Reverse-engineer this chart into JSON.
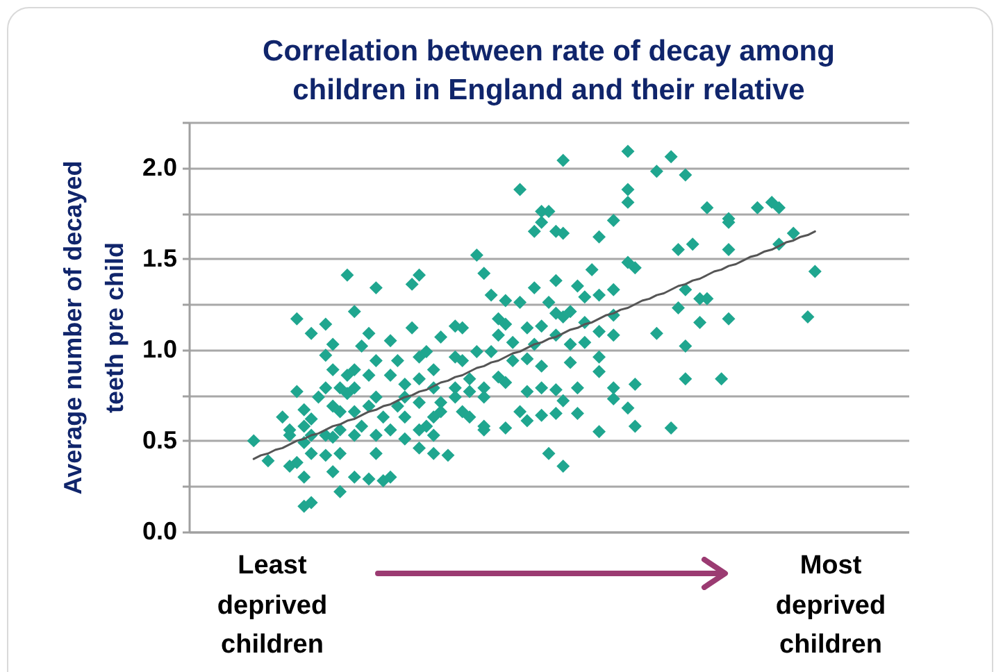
{
  "chart_data": {
    "type": "scatter",
    "title": "Correlation between rate of decay among children in England and their relative",
    "ylabel": "Average number of decayed teeth pre child",
    "annotations": [
      "Least deprived children",
      "Most deprived children"
    ],
    "categories": [
      null,
      null,
      null,
      null,
      null,
      null,
      null,
      null,
      null,
      null,
      null,
      null,
      null,
      null,
      null,
      null,
      null,
      null,
      null,
      null,
      null,
      null,
      null,
      null,
      null,
      null,
      null,
      null,
      null,
      null,
      null,
      null,
      null,
      null,
      null,
      null,
      null,
      null,
      null,
      null,
      null,
      null,
      null,
      null,
      null,
      null,
      null,
      null,
      null,
      null,
      null,
      null,
      null,
      null,
      null,
      null,
      null,
      null,
      null,
      null,
      null,
      null,
      null,
      null,
      null,
      null,
      null,
      null,
      null,
      null,
      null,
      null,
      null,
      null,
      null,
      null,
      null,
      null,
      null,
      null,
      null,
      null,
      null,
      null,
      null,
      null,
      null,
      null,
      null,
      null,
      null,
      null,
      null,
      null,
      null,
      null,
      null,
      null,
      null,
      null,
      null
    ],
    "ylim": [
      0,
      2.25
    ],
    "yticks": [
      {
        "value": 0,
        "label": "0.0"
      },
      {
        "value": 0.25,
        "label": null
      },
      0.5,
      {
        "value": 0.75,
        "label": null
      },
      {
        "value": 1,
        "label": "1.0"
      },
      {
        "value": 1.25,
        "label": null
      },
      1.5,
      {
        "value": 1.75,
        "label": null
      },
      {
        "value": 2,
        "label": "2.0"
      },
      {
        "value": 2.25,
        "label": null
      }
    ],
    "tick_labels": "y",
    "grid": "y",
    "marker": "diamond",
    "series": [
      {
        "color": "#1fa68f",
        "values": [
          null,
          null,
          null,
          null,
          null,
          null,
          null,
          null,
          null,
          0.5,
          null,
          0.39,
          null,
          0.63,
          0.56,
          1.17,
          0.67,
          1.09,
          0.74,
          1.14,
          1.03,
          0.22,
          1.41,
          1.21,
          1.02,
          1.09,
          0.94,
          0.63,
          1.05,
          0.94,
          0.81,
          1.36,
          1.41,
          0.58,
          0.43,
          0.71,
          0.42,
          1.13,
          1.12,
          0.63,
          1.52,
          1.42,
          1.3,
          1.17,
          1.27,
          1.04,
          1.88,
          1.12,
          1.65,
          1.76,
          1.76,
          1.65,
          2.04,
          1.21,
          1.35,
          1.29,
          1.44,
          1.62,
          null,
          1.71,
          null,
          2.09,
          1.45,
          null,
          null,
          1.98,
          null,
          2.06,
          1.55,
          1.96,
          1.58,
          1.15,
          1.78,
          null,
          0.84,
          1.7,
          null,
          null,
          null,
          1.78,
          null,
          1.81,
          1.78,
          null,
          1.64,
          null,
          1.18,
          1.43,
          null,
          null,
          null,
          null,
          null,
          null,
          null,
          null,
          null,
          null,
          null,
          null,
          null
        ]
      },
      {
        "color": "#1fa68f",
        "values": [
          null,
          null,
          null,
          null,
          null,
          null,
          null,
          null,
          null,
          null,
          null,
          null,
          null,
          null,
          0.36,
          0.77,
          0.3,
          0.16,
          null,
          0.97,
          0.69,
          0.56,
          0.86,
          0.79,
          0.58,
          0.86,
          1.34,
          0.28,
          0.3,
          0.69,
          0.63,
          1.12,
          0.96,
          0.99,
          0.53,
          1.07,
          null,
          0.74,
          0.94,
          0.84,
          0.99,
          0.74,
          0.99,
          1.08,
          1.14,
          0.94,
          1.26,
          0.95,
          1.34,
          1.7,
          1.26,
          1.38,
          1.64,
          1.03,
          0.79,
          1.15,
          null,
          1.3,
          null,
          1.33,
          null,
          1.88,
          0.81,
          null,
          null,
          1.09,
          null,
          0.57,
          1.23,
          1.33,
          null,
          1.28,
          1.28,
          null,
          null,
          1.72,
          null,
          null,
          null,
          null,
          null,
          null,
          1.58,
          null,
          null,
          null,
          null,
          null,
          null,
          null,
          null,
          null,
          null,
          null,
          null,
          null,
          null,
          null,
          null,
          null,
          null
        ]
      },
      {
        "color": "#1fa68f",
        "values": [
          null,
          null,
          null,
          null,
          null,
          null,
          null,
          null,
          null,
          null,
          null,
          null,
          null,
          null,
          0.53,
          0.38,
          0.14,
          0.43,
          null,
          0.79,
          0.33,
          0.43,
          0.76,
          0.3,
          null,
          0.29,
          0.74,
          null,
          0.86,
          null,
          0.51,
          null,
          0.84,
          null,
          0.63,
          0.66,
          null,
          0.79,
          0.66,
          0.77,
          null,
          0.58,
          null,
          0.85,
          0.82,
          null,
          0.66,
          0.77,
          1.03,
          1.13,
          0.43,
          1.2,
          1.18,
          0.93,
          0.65,
          1.04,
          null,
          1.1,
          null,
          1.19,
          null,
          1.81,
          0.58,
          null,
          null,
          null,
          null,
          null,
          null,
          1.02,
          null,
          null,
          null,
          null,
          null,
          1.55,
          null,
          null,
          null,
          null,
          null,
          null,
          null,
          null,
          null,
          null,
          null,
          null,
          null,
          null,
          null,
          null,
          null,
          null,
          null,
          null,
          null,
          null,
          null,
          null,
          null
        ]
      },
      {
        "color": "#1fa68f",
        "values": [
          null,
          null,
          null,
          null,
          null,
          null,
          null,
          null,
          null,
          null,
          null,
          null,
          null,
          null,
          null,
          null,
          0.49,
          0.62,
          null,
          0.53,
          0.89,
          0.79,
          null,
          0.53,
          null,
          0.69,
          0.53,
          null,
          0.56,
          null,
          0.74,
          null,
          0.71,
          null,
          0.79,
          null,
          null,
          0.96,
          null,
          null,
          null,
          0.79,
          null,
          null,
          0.57,
          null,
          null,
          0.61,
          null,
          0.91,
          null,
          1.08,
          0.72,
          null,
          null,
          null,
          null,
          0.96,
          null,
          1.08,
          null,
          1.48,
          null,
          null,
          null,
          null,
          null,
          null,
          null,
          0.84,
          null,
          null,
          null,
          null,
          null,
          1.17,
          null,
          null,
          null,
          null,
          null,
          null,
          null,
          null,
          null,
          null,
          null,
          null,
          null,
          null,
          null,
          null,
          null,
          null,
          null,
          null,
          null,
          null,
          null,
          null,
          null
        ]
      },
      {
        "color": "#1fa68f",
        "values": [
          null,
          null,
          null,
          null,
          null,
          null,
          null,
          null,
          null,
          null,
          null,
          null,
          null,
          null,
          null,
          null,
          0.58,
          0.53,
          null,
          0.42,
          0.52,
          0.66,
          null,
          0.66,
          null,
          null,
          0.43,
          null,
          null,
          null,
          null,
          null,
          0.56,
          null,
          0.89,
          null,
          null,
          null,
          null,
          null,
          null,
          0.56,
          null,
          null,
          null,
          null,
          null,
          null,
          null,
          0.79,
          null,
          0.78,
          0.36,
          null,
          null,
          null,
          null,
          0.88,
          null,
          0.79,
          null,
          0.68,
          null,
          null,
          null,
          null,
          null,
          null,
          null,
          null,
          null,
          null,
          null,
          null,
          null,
          null,
          null,
          null,
          null,
          null,
          null,
          null,
          null,
          null,
          null,
          null,
          null,
          null,
          null,
          null,
          null,
          null,
          null,
          null,
          null,
          null,
          null,
          null,
          null,
          null,
          null
        ]
      },
      {
        "color": "#1fa68f",
        "values": [
          null,
          null,
          null,
          null,
          null,
          null,
          null,
          null,
          null,
          null,
          null,
          null,
          null,
          null,
          null,
          null,
          null,
          null,
          null,
          null,
          null,
          null,
          null,
          0.89,
          null,
          null,
          null,
          null,
          null,
          null,
          null,
          null,
          0.46,
          null,
          null,
          null,
          null,
          null,
          null,
          null,
          null,
          null,
          null,
          null,
          null,
          null,
          null,
          null,
          null,
          0.64,
          null,
          0.65,
          null,
          null,
          null,
          null,
          null,
          0.55,
          null,
          0.73,
          null,
          null,
          null,
          null,
          null,
          null,
          null,
          null,
          null,
          null,
          null,
          null,
          null,
          null,
          null,
          null,
          null,
          null,
          null,
          null,
          null,
          null,
          null,
          null,
          null,
          null,
          null,
          null,
          null,
          null,
          null,
          null,
          null,
          null,
          null,
          null,
          null,
          null,
          null,
          null,
          null
        ]
      },
      {
        "type": "line",
        "color": "#555555",
        "marker": "none",
        "values": [
          null,
          null,
          null,
          null,
          null,
          null,
          null,
          null,
          null,
          0.4,
          0.42,
          0.43,
          0.45,
          0.46,
          0.48,
          0.5,
          0.51,
          0.53,
          0.54,
          0.56,
          0.58,
          0.59,
          0.61,
          0.62,
          0.64,
          0.66,
          0.67,
          0.69,
          0.7,
          0.72,
          0.74,
          0.75,
          0.77,
          0.78,
          0.8,
          0.82,
          0.83,
          0.85,
          0.86,
          0.88,
          0.9,
          0.91,
          0.93,
          0.94,
          0.96,
          0.98,
          0.99,
          1.01,
          1.03,
          1.04,
          1.06,
          1.07,
          1.09,
          1.11,
          1.12,
          1.14,
          1.15,
          1.17,
          1.19,
          1.2,
          1.22,
          1.23,
          1.25,
          1.27,
          1.28,
          1.3,
          1.31,
          1.33,
          1.35,
          1.36,
          1.38,
          1.39,
          1.41,
          1.43,
          1.44,
          1.46,
          1.47,
          1.49,
          1.51,
          1.52,
          1.54,
          1.55,
          1.57,
          1.59,
          1.6,
          1.62,
          1.63,
          1.65,
          null,
          null,
          null,
          null,
          null,
          null,
          null,
          null,
          null,
          null,
          null,
          null,
          null
        ]
      }
    ]
  }
}
